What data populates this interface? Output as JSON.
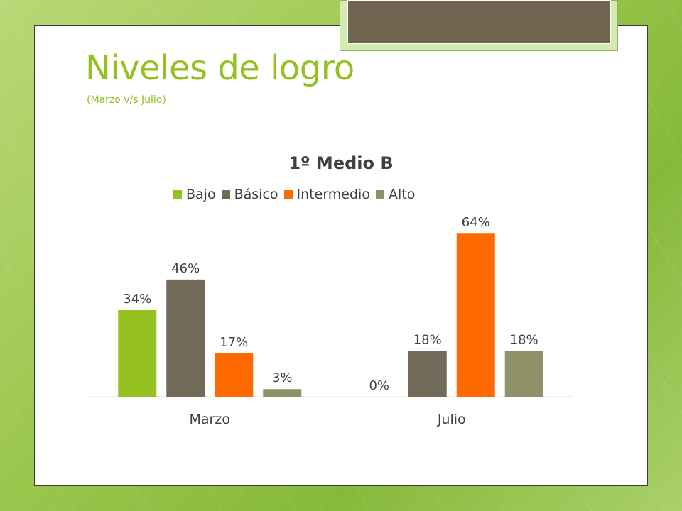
{
  "slide": {
    "title": "Niveles de logro",
    "subtitle": "(Marzo v/s Julio)"
  },
  "colors": {
    "accent": "#94c11f",
    "bajo": "#94c11f",
    "basico": "#716a59",
    "intermedio": "#ff6a00",
    "alto": "#8f9168"
  },
  "chart_data": {
    "type": "bar",
    "title": "1º Medio B",
    "categories": [
      "Marzo",
      "Julio"
    ],
    "series": [
      {
        "name": "Bajo",
        "values": [
          34,
          0
        ],
        "labels": [
          "34%",
          "0%"
        ],
        "color": "#94c11f"
      },
      {
        "name": "Básico",
        "values": [
          46,
          18
        ],
        "labels": [
          "46%",
          "18%"
        ],
        "color": "#716a59"
      },
      {
        "name": "Intermedio",
        "values": [
          17,
          64
        ],
        "labels": [
          "17%",
          "64%"
        ],
        "color": "#ff6a00"
      },
      {
        "name": "Alto",
        "values": [
          3,
          18
        ],
        "labels": [
          "3%",
          "18%"
        ],
        "color": "#8f9168"
      }
    ],
    "ylim": [
      0,
      70
    ],
    "grid": false,
    "legend": "top"
  }
}
